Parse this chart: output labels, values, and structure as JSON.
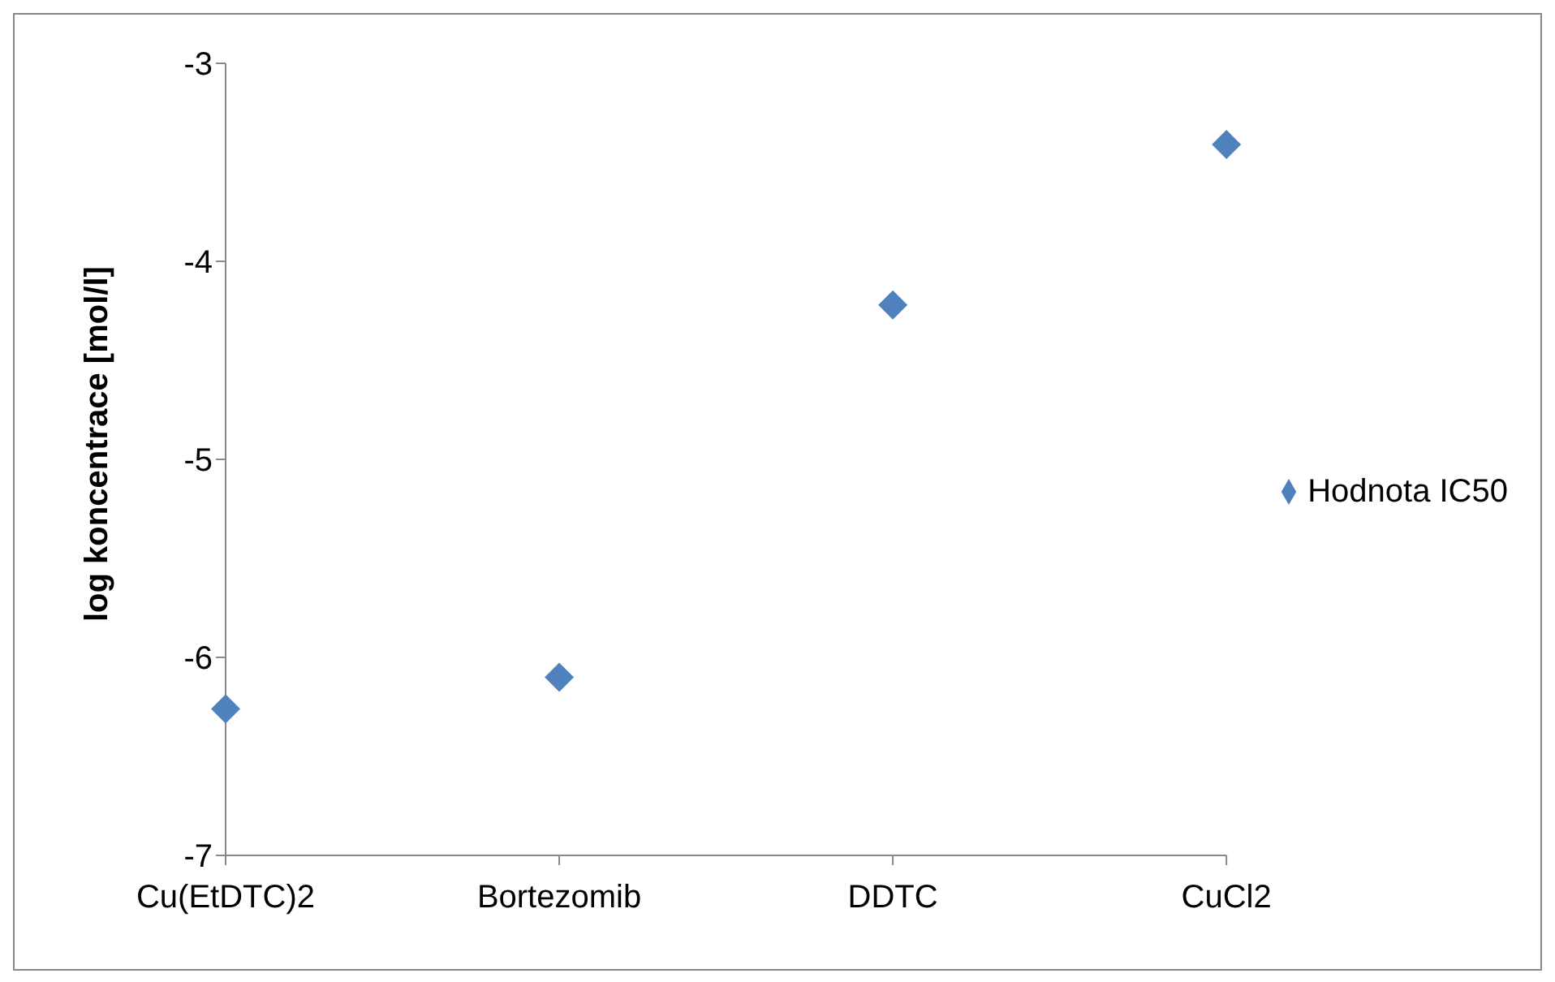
{
  "chart_data": {
    "type": "scatter",
    "ylabel": "log koncentrace [mol/l]",
    "categories": [
      "Cu(EtDTC)2",
      "Bortezomib",
      "DDTC",
      "CuCl2"
    ],
    "series": [
      {
        "name": "Hodnota IC50",
        "color": "#4f81bd",
        "values": [
          -6.26,
          -6.1,
          -4.22,
          -3.41
        ]
      }
    ],
    "ylim": [
      -7,
      -3
    ],
    "yticks": [
      -7,
      -6,
      -5,
      -4,
      -3
    ],
    "grid": false,
    "legend": "right",
    "marker": "diamond"
  }
}
